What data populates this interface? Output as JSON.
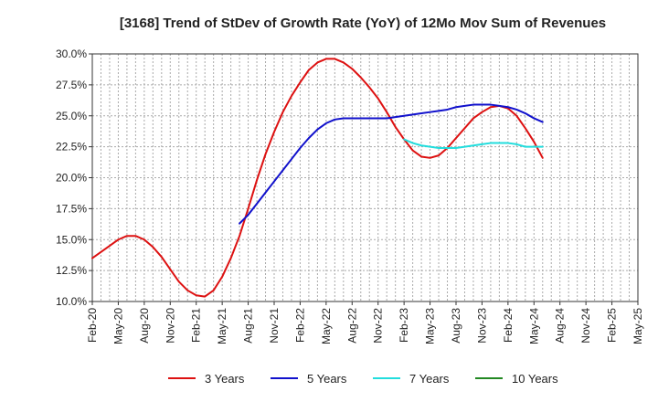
{
  "chart_data": {
    "type": "line",
    "title": "[3168]  Trend of StDev of Growth Rate (YoY) of 12Mo Mov Sum of Revenues",
    "xlabel": "",
    "ylabel": "",
    "ylim": [
      10.0,
      30.0
    ],
    "yticks": [
      10.0,
      12.5,
      15.0,
      17.5,
      20.0,
      22.5,
      25.0,
      27.5,
      30.0
    ],
    "ytick_labels": [
      "10.0%",
      "12.5%",
      "15.0%",
      "17.5%",
      "20.0%",
      "22.5%",
      "25.0%",
      "27.5%",
      "30.0%"
    ],
    "x_range_months": [
      0,
      63
    ],
    "xtick_labels": [
      "Feb-20",
      "May-20",
      "Aug-20",
      "Nov-20",
      "Feb-21",
      "May-21",
      "Aug-21",
      "Nov-21",
      "Feb-22",
      "May-22",
      "Aug-22",
      "Nov-22",
      "Feb-23",
      "May-23",
      "Aug-23",
      "Nov-23",
      "Feb-24",
      "May-24",
      "Aug-24",
      "Nov-24",
      "Feb-25",
      "May-25"
    ],
    "grid": true,
    "legend_position": "bottom",
    "series": [
      {
        "name": "3 Years",
        "color": "#dd1111",
        "points": [
          [
            0,
            13.5
          ],
          [
            1,
            14.0
          ],
          [
            2,
            14.5
          ],
          [
            3,
            15.0
          ],
          [
            4,
            15.3
          ],
          [
            5,
            15.3
          ],
          [
            6,
            15.0
          ],
          [
            7,
            14.4
          ],
          [
            8,
            13.6
          ],
          [
            9,
            12.6
          ],
          [
            10,
            11.6
          ],
          [
            11,
            10.9
          ],
          [
            12,
            10.5
          ],
          [
            13,
            10.4
          ],
          [
            14,
            10.9
          ],
          [
            15,
            12.0
          ],
          [
            16,
            13.5
          ],
          [
            17,
            15.3
          ],
          [
            18,
            17.5
          ],
          [
            19,
            19.8
          ],
          [
            20,
            21.9
          ],
          [
            21,
            23.7
          ],
          [
            22,
            25.3
          ],
          [
            23,
            26.6
          ],
          [
            24,
            27.7
          ],
          [
            25,
            28.7
          ],
          [
            26,
            29.3
          ],
          [
            27,
            29.6
          ],
          [
            28,
            29.6
          ],
          [
            29,
            29.3
          ],
          [
            30,
            28.8
          ],
          [
            31,
            28.1
          ],
          [
            32,
            27.3
          ],
          [
            33,
            26.4
          ],
          [
            34,
            25.3
          ],
          [
            35,
            24.1
          ],
          [
            36,
            23.1
          ],
          [
            37,
            22.2
          ],
          [
            38,
            21.7
          ],
          [
            39,
            21.6
          ],
          [
            40,
            21.8
          ],
          [
            41,
            22.4
          ],
          [
            42,
            23.2
          ],
          [
            43,
            24.0
          ],
          [
            44,
            24.8
          ],
          [
            45,
            25.3
          ],
          [
            46,
            25.7
          ],
          [
            47,
            25.8
          ],
          [
            48,
            25.6
          ],
          [
            49,
            25.0
          ],
          [
            50,
            24.0
          ],
          [
            51,
            22.9
          ],
          [
            52,
            21.6
          ]
        ]
      },
      {
        "name": "5 Years",
        "color": "#1111cc",
        "points": [
          [
            17,
            16.3
          ],
          [
            18,
            17.0
          ],
          [
            19,
            17.9
          ],
          [
            20,
            18.8
          ],
          [
            21,
            19.7
          ],
          [
            22,
            20.6
          ],
          [
            23,
            21.5
          ],
          [
            24,
            22.4
          ],
          [
            25,
            23.2
          ],
          [
            26,
            23.9
          ],
          [
            27,
            24.4
          ],
          [
            28,
            24.7
          ],
          [
            29,
            24.8
          ],
          [
            30,
            24.8
          ],
          [
            31,
            24.8
          ],
          [
            32,
            24.8
          ],
          [
            33,
            24.8
          ],
          [
            34,
            24.8
          ],
          [
            35,
            24.9
          ],
          [
            36,
            25.0
          ],
          [
            37,
            25.1
          ],
          [
            38,
            25.2
          ],
          [
            39,
            25.3
          ],
          [
            40,
            25.4
          ],
          [
            41,
            25.5
          ],
          [
            42,
            25.7
          ],
          [
            43,
            25.8
          ],
          [
            44,
            25.9
          ],
          [
            45,
            25.9
          ],
          [
            46,
            25.9
          ],
          [
            47,
            25.8
          ],
          [
            48,
            25.7
          ],
          [
            49,
            25.5
          ],
          [
            50,
            25.2
          ],
          [
            51,
            24.8
          ],
          [
            52,
            24.5
          ]
        ]
      },
      {
        "name": "7 Years",
        "color": "#22dddd",
        "points": [
          [
            36,
            23.1
          ],
          [
            37,
            22.8
          ],
          [
            38,
            22.6
          ],
          [
            39,
            22.5
          ],
          [
            40,
            22.4
          ],
          [
            41,
            22.4
          ],
          [
            42,
            22.4
          ],
          [
            43,
            22.5
          ],
          [
            44,
            22.6
          ],
          [
            45,
            22.7
          ],
          [
            46,
            22.8
          ],
          [
            47,
            22.8
          ],
          [
            48,
            22.8
          ],
          [
            49,
            22.7
          ],
          [
            50,
            22.5
          ],
          [
            51,
            22.5
          ],
          [
            52,
            22.5
          ]
        ]
      },
      {
        "name": "10 Years",
        "color": "#228822",
        "points": []
      }
    ]
  }
}
